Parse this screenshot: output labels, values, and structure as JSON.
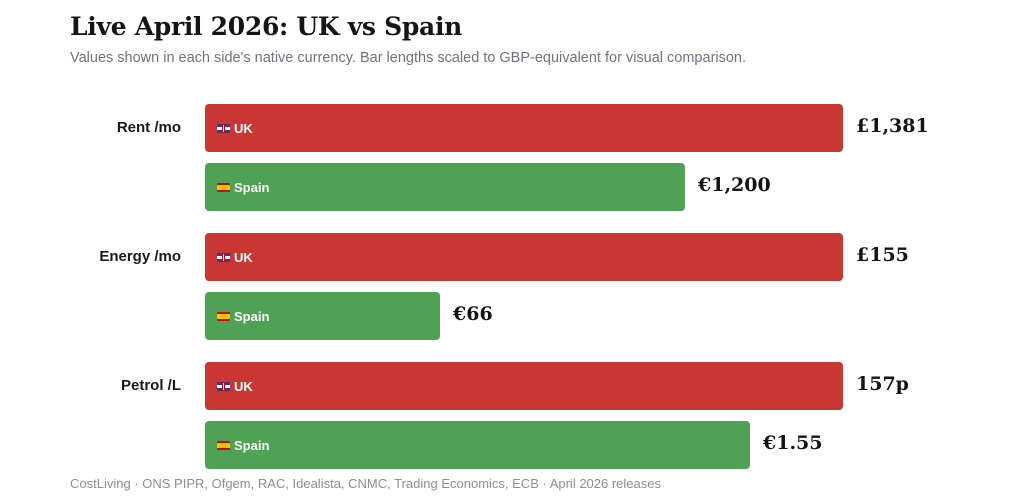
{
  "chart_data": {
    "type": "bar",
    "orientation": "horizontal",
    "title": "Live April 2026: UK vs Spain",
    "subtitle": "Values shown in each side's native currency. Bar lengths scaled to GBP-equivalent for visual comparison.",
    "groups": [
      {
        "label": "Rent /mo",
        "bars": [
          {
            "name": "UK",
            "display_value": "£1,381",
            "relative_length": 1.0,
            "color": "#c93732"
          },
          {
            "name": "Spain",
            "display_value": "€1,200",
            "relative_length": 0.753,
            "color": "#4fa154"
          }
        ]
      },
      {
        "label": "Energy /mo",
        "bars": [
          {
            "name": "UK",
            "display_value": "£155",
            "relative_length": 1.0,
            "color": "#c93732"
          },
          {
            "name": "Spain",
            "display_value": "€66",
            "relative_length": 0.368,
            "color": "#4fa154"
          }
        ]
      },
      {
        "label": "Petrol /L",
        "bars": [
          {
            "name": "UK",
            "display_value": "157p",
            "relative_length": 1.0,
            "color": "#c93732"
          },
          {
            "name": "Spain",
            "display_value": "€1.55",
            "relative_length": 0.855,
            "color": "#4fa154"
          }
        ]
      }
    ],
    "series_colors": {
      "UK": "#c93732",
      "Spain": "#4fa154"
    }
  },
  "footer": "CostLiving · ONS PIPR, Ofgem, RAC, Idealista, CNMC, Trading Economics, ECB · April 2026 releases"
}
